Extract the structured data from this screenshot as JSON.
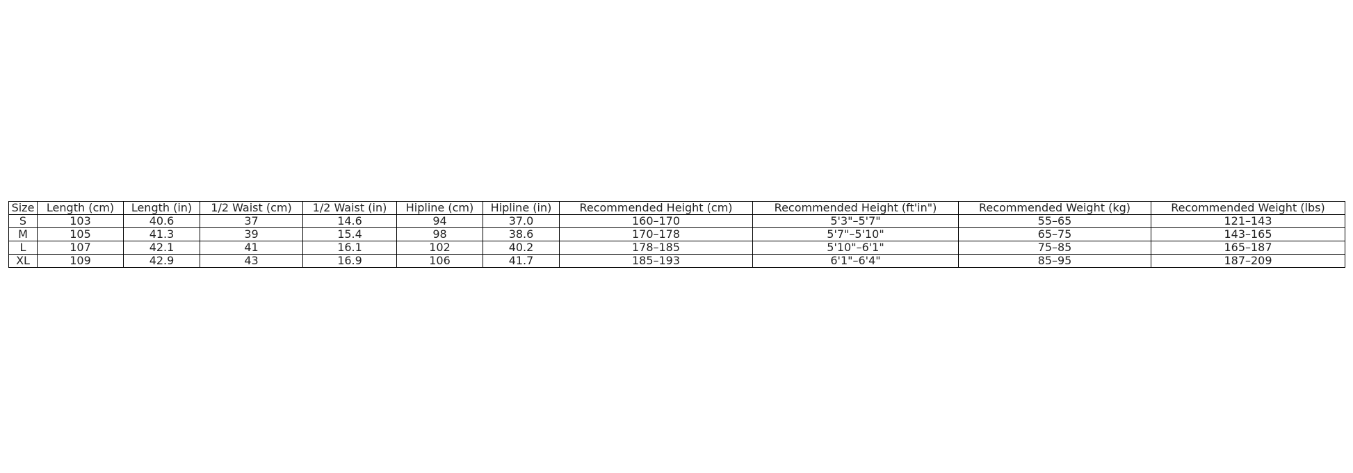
{
  "chart_data": {
    "type": "table",
    "columns": [
      "Size",
      "Length (cm)",
      "Length (in)",
      "1/2 Waist (cm)",
      "1/2 Waist (in)",
      "Hipline (cm)",
      "Hipline (in)",
      "Recommended Height (cm)",
      "Recommended Height (ft'in\")",
      "Recommended Weight (kg)",
      "Recommended Weight (lbs)"
    ],
    "rows": [
      [
        "S",
        "103",
        "40.6",
        "37",
        "14.6",
        "94",
        "37.0",
        "160–170",
        "5'3\"–5'7\"",
        "55–65",
        "121–143"
      ],
      [
        "M",
        "105",
        "41.3",
        "39",
        "15.4",
        "98",
        "38.6",
        "170–178",
        "5'7\"–5'10\"",
        "65–75",
        "143–165"
      ],
      [
        "L",
        "107",
        "42.1",
        "41",
        "16.1",
        "102",
        "40.2",
        "178–185",
        "5'10\"–6'1\"",
        "75–85",
        "165–187"
      ],
      [
        "XL",
        "109",
        "42.9",
        "43",
        "16.9",
        "106",
        "41.7",
        "185–193",
        "6'1\"–6'4\"",
        "85–95",
        "187–209"
      ]
    ]
  }
}
